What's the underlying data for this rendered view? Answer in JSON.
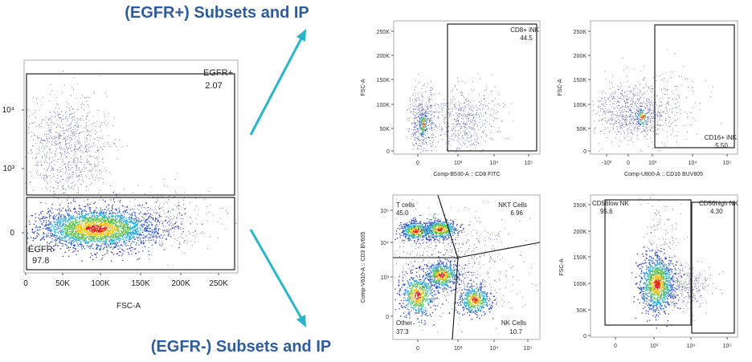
{
  "headings": {
    "top": "(EGFR+) Subsets and IP",
    "bottom": "(EGFR-) Subsets and IP"
  },
  "colors": {
    "heading": "#2f5c9a",
    "arrow": "#2bb5c8",
    "events_low": "#2f3fae",
    "events_high": "#e8201a"
  },
  "chart_data": [
    {
      "type": "scatter",
      "style": "density pseudocolor",
      "xlabel": "FSC-A",
      "ylabel": "",
      "xticks": [
        "0",
        "50K",
        "100K",
        "150K",
        "200K",
        "250K"
      ],
      "yticks": [
        "10⁴",
        "10³",
        "0"
      ],
      "yscale": "biexponential",
      "gates": [
        {
          "name": "EGFR+",
          "value": "2.07"
        },
        {
          "name": "EGFR-",
          "value": "97.8"
        }
      ]
    },
    {
      "type": "scatter",
      "style": "dot plot",
      "xlabel": "Comp-B530-A :: CD8 FITC",
      "ylabel": "FSC-A",
      "xticks": [
        "0",
        "10³",
        "10⁴",
        "10⁵"
      ],
      "yticks": [
        "250K",
        "200K",
        "150K",
        "100K",
        "50K",
        "0"
      ],
      "xscale": "biexponential",
      "gates": [
        {
          "name": "CD8+ iNK",
          "value": "44.5"
        }
      ]
    },
    {
      "type": "scatter",
      "style": "dot plot",
      "xlabel": "Comp-U800-A :: CD16 BUV805",
      "ylabel": "FSC-A",
      "xticks": [
        "-10³",
        "0",
        "10³",
        "10⁴",
        "10⁵"
      ],
      "yticks": [
        "250K",
        "200K",
        "150K",
        "100K",
        "50K",
        "0"
      ],
      "xscale": "biexponential",
      "gates": [
        {
          "name": "CD16+ iNK",
          "value": "5.50"
        }
      ]
    },
    {
      "type": "scatter",
      "style": "density pseudocolor",
      "xlabel": "",
      "ylabel": "Comp-V610-A :: CD3 BV605",
      "xticks": [
        "0",
        "10³",
        "10⁴",
        "10⁵"
      ],
      "yticks": [
        "10⁵",
        "10⁴",
        "10³",
        "0"
      ],
      "xscale": "biexponential",
      "yscale": "biexponential",
      "gates": [
        {
          "name": "T cells",
          "value": "45.0"
        },
        {
          "name": "NKT Cells",
          "value": "6.96"
        },
        {
          "name": "Other",
          "value": "37.3"
        },
        {
          "name": "NK Cells",
          "value": "10.7"
        }
      ]
    },
    {
      "type": "scatter",
      "style": "density pseudocolor",
      "xlabel": "",
      "ylabel": "FSC-A",
      "xticks": [
        "0",
        "10³",
        "10⁴",
        "10⁵"
      ],
      "yticks": [
        "250K",
        "200K",
        "150K",
        "100K",
        "50K",
        "0"
      ],
      "xscale": "biexponential",
      "gates": [
        {
          "name": "CD56low NK",
          "value": "95.6"
        },
        {
          "name": "CD56high NK",
          "value": "4.30"
        }
      ]
    }
  ]
}
